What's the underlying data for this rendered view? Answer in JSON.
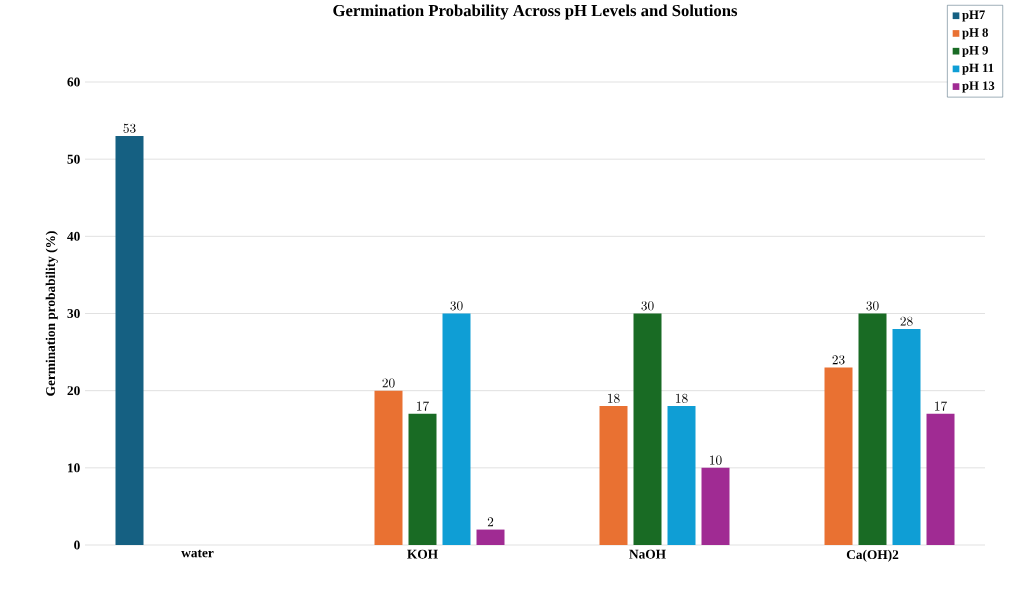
{
  "chart_data": {
    "type": "bar",
    "title": "Germination Probability Across pH Levels and Solutions",
    "ylabel": "Germination probability (%)",
    "categories": [
      "water",
      "KOH",
      "NaOH",
      "Ca(OH)2"
    ],
    "series": [
      {
        "name": "pH7",
        "color": "#156082",
        "values": [
          53,
          null,
          null,
          null
        ]
      },
      {
        "name": "pH 8",
        "color": "#e97132",
        "values": [
          null,
          20,
          18,
          23
        ]
      },
      {
        "name": "pH 9",
        "color": "#196b24",
        "values": [
          null,
          17,
          30,
          30
        ]
      },
      {
        "name": "pH 11",
        "color": "#0f9ed5",
        "values": [
          null,
          30,
          18,
          28
        ]
      },
      {
        "name": "pH 13",
        "color": "#a02b93",
        "values": [
          null,
          2,
          10,
          17
        ]
      }
    ],
    "ylim": [
      0,
      60
    ],
    "yticks": [
      0,
      10,
      20,
      30,
      40,
      50,
      60
    ],
    "grid": "y",
    "legend": "top right",
    "data_labels": true
  }
}
